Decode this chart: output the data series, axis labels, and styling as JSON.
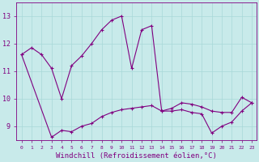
{
  "xlabel": "Windchill (Refroidissement éolien,°C)",
  "hours": [
    0,
    1,
    2,
    3,
    4,
    5,
    6,
    7,
    8,
    9,
    10,
    11,
    12,
    13,
    14,
    15,
    16,
    17,
    18,
    19,
    20,
    21,
    22,
    23
  ],
  "line1": [
    11.6,
    11.85,
    11.6,
    11.1,
    10.0,
    11.2,
    11.55,
    12.0,
    12.5,
    12.85,
    13.0,
    11.1,
    12.5,
    12.65,
    9.55,
    9.65,
    9.85,
    9.8,
    9.7,
    9.55,
    9.5,
    9.5,
    10.05,
    9.85
  ],
  "line2": [
    11.6,
    null,
    null,
    8.6,
    8.85,
    8.8,
    9.0,
    9.1,
    9.35,
    9.5,
    9.6,
    9.65,
    9.7,
    9.75,
    9.55,
    9.55,
    9.6,
    9.5,
    9.45,
    8.75,
    9.0,
    9.15,
    9.55,
    9.85
  ],
  "ylim": [
    8.5,
    13.5
  ],
  "yticks": [
    9,
    10,
    11,
    12,
    13
  ],
  "xticks": [
    0,
    1,
    2,
    3,
    4,
    5,
    6,
    7,
    8,
    9,
    10,
    11,
    12,
    13,
    14,
    15,
    16,
    17,
    18,
    19,
    20,
    21,
    22,
    23
  ],
  "line_color": "#800080",
  "bg_color": "#c8eaea",
  "grid_color": "#a8d8d8",
  "text_color": "#800080",
  "axis_color": "#800080",
  "font_size": 6,
  "xlabel_font_size": 6.5
}
